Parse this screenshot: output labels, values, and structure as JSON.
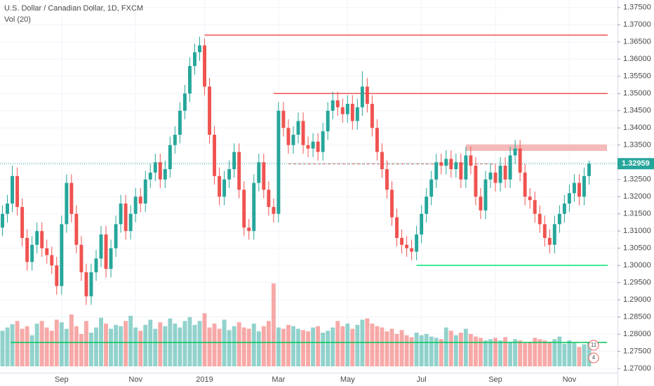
{
  "chart_data": {
    "type": "candlestick",
    "title": "U.S. Dollar / Canadian Dollar, 1D, FXCM",
    "volume_title": "Vol (20)",
    "up_color": "#26a69a",
    "down_color": "#ef5350",
    "grid": true,
    "ylim": [
      1.2686,
      1.3772
    ],
    "yticks": [
      {
        "value": 1.27,
        "label": "1.27000"
      },
      {
        "value": 1.275,
        "label": "1.27500"
      },
      {
        "value": 1.28,
        "label": "1.28000"
      },
      {
        "value": 1.285,
        "label": "1.28500"
      },
      {
        "value": 1.29,
        "label": "1.29000"
      },
      {
        "value": 1.295,
        "label": "1.29500"
      },
      {
        "value": 1.3,
        "label": "1.30000"
      },
      {
        "value": 1.305,
        "label": "1.30500"
      },
      {
        "value": 1.31,
        "label": "1.31000"
      },
      {
        "value": 1.315,
        "label": "1.31500"
      },
      {
        "value": 1.32,
        "label": "1.32000"
      },
      {
        "value": 1.325,
        "label": "1.32500"
      },
      {
        "value": 1.33,
        "label": "1.33000"
      },
      {
        "value": 1.335,
        "label": "1.33500"
      },
      {
        "value": 1.34,
        "label": "1.34000"
      },
      {
        "value": 1.345,
        "label": "1.34500"
      },
      {
        "value": 1.35,
        "label": "1.35000"
      },
      {
        "value": 1.355,
        "label": "1.35500"
      },
      {
        "value": 1.36,
        "label": "1.36000"
      },
      {
        "value": 1.365,
        "label": "1.36500"
      },
      {
        "value": 1.37,
        "label": "1.37000"
      },
      {
        "value": 1.375,
        "label": "1.37500"
      }
    ],
    "categories": [
      null,
      null,
      null,
      null,
      null,
      null,
      null,
      null,
      null,
      null,
      null,
      null,
      "Sep",
      null,
      null,
      null,
      null,
      null,
      null,
      null,
      null,
      null,
      null,
      null,
      null,
      null,
      null,
      "Nov",
      null,
      null,
      null,
      null,
      null,
      null,
      null,
      null,
      null,
      null,
      null,
      null,
      null,
      "2019",
      null,
      null,
      null,
      null,
      null,
      null,
      null,
      null,
      null,
      null,
      null,
      null,
      null,
      null,
      "Mar",
      null,
      null,
      null,
      null,
      null,
      null,
      null,
      null,
      null,
      null,
      null,
      null,
      null,
      "May",
      null,
      null,
      null,
      null,
      null,
      null,
      null,
      null,
      null,
      null,
      null,
      null,
      null,
      null,
      "Jul",
      null,
      null,
      null,
      null,
      null,
      null,
      null,
      null,
      null,
      null,
      null,
      null,
      null,
      null,
      "Sep",
      null,
      null,
      null,
      null,
      null,
      null,
      null,
      null,
      null,
      null,
      null,
      null,
      null,
      null,
      "Nov",
      null,
      null,
      null,
      null
    ],
    "candles": [
      [
        1.311,
        1.3175,
        1.3085,
        1.315
      ],
      [
        1.315,
        1.3205,
        1.3125,
        1.318
      ],
      [
        1.318,
        1.329,
        1.3155,
        1.326
      ],
      [
        1.326,
        1.3285,
        1.3145,
        1.317
      ],
      [
        1.317,
        1.3195,
        1.3055,
        1.308
      ],
      [
        1.308,
        1.3105,
        1.2985,
        1.301
      ],
      [
        1.301,
        1.3085,
        1.2985,
        1.306
      ],
      [
        1.306,
        1.3125,
        1.3035,
        1.31
      ],
      [
        1.31,
        1.3125,
        1.3025,
        1.305
      ],
      [
        1.305,
        1.3075,
        1.3005,
        1.303
      ],
      [
        1.303,
        1.3055,
        1.2975,
        1.3
      ],
      [
        1.3,
        1.3025,
        1.2915,
        1.294
      ],
      [
        1.294,
        1.3145,
        1.2915,
        1.312
      ],
      [
        1.312,
        1.3265,
        1.3095,
        1.324
      ],
      [
        1.324,
        1.3265,
        1.3125,
        1.315
      ],
      [
        1.315,
        1.3175,
        1.3035,
        1.306
      ],
      [
        1.306,
        1.3085,
        1.2955,
        1.298
      ],
      [
        1.298,
        1.3005,
        1.2885,
        1.291
      ],
      [
        1.291,
        1.3005,
        1.2885,
        1.298
      ],
      [
        1.298,
        1.3045,
        1.2955,
        1.302
      ],
      [
        1.302,
        1.3115,
        1.2995,
        1.309
      ],
      [
        1.309,
        1.3115,
        1.2965,
        1.299
      ],
      [
        1.299,
        1.3075,
        1.2965,
        1.305
      ],
      [
        1.305,
        1.3145,
        1.3025,
        1.312
      ],
      [
        1.312,
        1.3205,
        1.3095,
        1.318
      ],
      [
        1.318,
        1.3205,
        1.3075,
        1.31
      ],
      [
        1.31,
        1.3175,
        1.3075,
        1.315
      ],
      [
        1.315,
        1.3225,
        1.3125,
        1.32
      ],
      [
        1.32,
        1.3225,
        1.3155,
        1.318
      ],
      [
        1.318,
        1.3275,
        1.3155,
        1.325
      ],
      [
        1.325,
        1.3295,
        1.3225,
        1.327
      ],
      [
        1.327,
        1.3325,
        1.3245,
        1.33
      ],
      [
        1.33,
        1.3325,
        1.3225,
        1.325
      ],
      [
        1.325,
        1.3305,
        1.3225,
        1.328
      ],
      [
        1.328,
        1.3375,
        1.3255,
        1.335
      ],
      [
        1.335,
        1.3405,
        1.3325,
        1.338
      ],
      [
        1.338,
        1.3475,
        1.3355,
        1.345
      ],
      [
        1.345,
        1.3525,
        1.3425,
        1.35
      ],
      [
        1.35,
        1.3605,
        1.3475,
        1.358
      ],
      [
        1.358,
        1.3645,
        1.3555,
        1.362
      ],
      [
        1.362,
        1.3665,
        1.3595,
        1.364
      ],
      [
        1.364,
        1.366,
        1.3495,
        1.352
      ],
      [
        1.352,
        1.3545,
        1.3355,
        1.338
      ],
      [
        1.338,
        1.3405,
        1.3235,
        1.326
      ],
      [
        1.326,
        1.3285,
        1.3175,
        1.32
      ],
      [
        1.32,
        1.3275,
        1.3175,
        1.325
      ],
      [
        1.325,
        1.3305,
        1.3225,
        1.328
      ],
      [
        1.328,
        1.3355,
        1.3255,
        1.333
      ],
      [
        1.333,
        1.3355,
        1.3195,
        1.322
      ],
      [
        1.322,
        1.3245,
        1.3085,
        1.311
      ],
      [
        1.311,
        1.3135,
        1.3075,
        1.31
      ],
      [
        1.31,
        1.3265,
        1.3075,
        1.324
      ],
      [
        1.324,
        1.3325,
        1.3215,
        1.33
      ],
      [
        1.33,
        1.3325,
        1.3195,
        1.322
      ],
      [
        1.322,
        1.3245,
        1.3145,
        1.317
      ],
      [
        1.317,
        1.3195,
        1.3125,
        1.315
      ],
      [
        1.315,
        1.3475,
        1.3125,
        1.345
      ],
      [
        1.345,
        1.3475,
        1.3375,
        1.34
      ],
      [
        1.34,
        1.3425,
        1.3325,
        1.335
      ],
      [
        1.335,
        1.3405,
        1.3325,
        1.338
      ],
      [
        1.338,
        1.3445,
        1.3355,
        1.342
      ],
      [
        1.342,
        1.3445,
        1.3325,
        1.335
      ],
      [
        1.335,
        1.3375,
        1.3315,
        1.334
      ],
      [
        1.334,
        1.3385,
        1.3315,
        1.336
      ],
      [
        1.336,
        1.3385,
        1.3305,
        1.333
      ],
      [
        1.333,
        1.3415,
        1.3305,
        1.339
      ],
      [
        1.339,
        1.3475,
        1.3365,
        1.345
      ],
      [
        1.345,
        1.3505,
        1.3425,
        1.348
      ],
      [
        1.348,
        1.3505,
        1.3435,
        1.346
      ],
      [
        1.346,
        1.3485,
        1.3415,
        1.344
      ],
      [
        1.344,
        1.3495,
        1.3415,
        1.347
      ],
      [
        1.347,
        1.3495,
        1.3395,
        1.342
      ],
      [
        1.342,
        1.3485,
        1.3395,
        1.346
      ],
      [
        1.346,
        1.3565,
        1.3435,
        1.352
      ],
      [
        1.352,
        1.3545,
        1.3445,
        1.347
      ],
      [
        1.347,
        1.3495,
        1.3375,
        1.34
      ],
      [
        1.34,
        1.3425,
        1.3305,
        1.333
      ],
      [
        1.333,
        1.3355,
        1.3255,
        1.328
      ],
      [
        1.328,
        1.3305,
        1.3195,
        1.322
      ],
      [
        1.322,
        1.3245,
        1.3115,
        1.314
      ],
      [
        1.314,
        1.3165,
        1.3055,
        1.308
      ],
      [
        1.308,
        1.3105,
        1.3035,
        1.306
      ],
      [
        1.306,
        1.3085,
        1.3025,
        1.305
      ],
      [
        1.305,
        1.3075,
        1.3015,
        1.304
      ],
      [
        1.304,
        1.3115,
        1.3015,
        1.309
      ],
      [
        1.309,
        1.3175,
        1.3065,
        1.315
      ],
      [
        1.315,
        1.3225,
        1.3125,
        1.32
      ],
      [
        1.32,
        1.3275,
        1.3175,
        1.325
      ],
      [
        1.325,
        1.3325,
        1.3225,
        1.33
      ],
      [
        1.33,
        1.3325,
        1.3265,
        1.329
      ],
      [
        1.329,
        1.3335,
        1.3265,
        1.331
      ],
      [
        1.331,
        1.3335,
        1.3255,
        1.328
      ],
      [
        1.328,
        1.3325,
        1.3255,
        1.33
      ],
      [
        1.33,
        1.3325,
        1.3225,
        1.325
      ],
      [
        1.325,
        1.3345,
        1.3225,
        1.332
      ],
      [
        1.332,
        1.3345,
        1.3265,
        1.329
      ],
      [
        1.329,
        1.3315,
        1.3175,
        1.32
      ],
      [
        1.32,
        1.3225,
        1.3135,
        1.316
      ],
      [
        1.316,
        1.3275,
        1.3135,
        1.325
      ],
      [
        1.325,
        1.3295,
        1.3225,
        1.327
      ],
      [
        1.327,
        1.3295,
        1.3215,
        1.324
      ],
      [
        1.324,
        1.3315,
        1.3215,
        1.329
      ],
      [
        1.329,
        1.3315,
        1.3225,
        1.325
      ],
      [
        1.325,
        1.3345,
        1.3225,
        1.332
      ],
      [
        1.332,
        1.3365,
        1.3295,
        1.334
      ],
      [
        1.334,
        1.3365,
        1.3245,
        1.327
      ],
      [
        1.327,
        1.3295,
        1.3175,
        1.32
      ],
      [
        1.32,
        1.3225,
        1.3165,
        1.319
      ],
      [
        1.319,
        1.3215,
        1.3125,
        1.315
      ],
      [
        1.315,
        1.3175,
        1.3095,
        1.312
      ],
      [
        1.312,
        1.3145,
        1.3055,
        1.308
      ],
      [
        1.308,
        1.3105,
        1.3035,
        1.306
      ],
      [
        1.306,
        1.3145,
        1.3035,
        1.312
      ],
      [
        1.312,
        1.3175,
        1.3095,
        1.315
      ],
      [
        1.315,
        1.3205,
        1.3125,
        1.318
      ],
      [
        1.318,
        1.3235,
        1.3155,
        1.321
      ],
      [
        1.321,
        1.3265,
        1.3185,
        1.324
      ],
      [
        1.324,
        1.3265,
        1.3175,
        1.32
      ],
      [
        1.32,
        1.3285,
        1.3175,
        1.326
      ],
      [
        1.326,
        1.3305,
        1.3235,
        1.3296
      ]
    ],
    "volume_lim": [
      0,
      130
    ],
    "volume": [
      55,
      60,
      65,
      70,
      58,
      62,
      48,
      66,
      70,
      60,
      55,
      72,
      68,
      58,
      80,
      62,
      50,
      70,
      52,
      60,
      75,
      66,
      58,
      64,
      62,
      70,
      78,
      60,
      55,
      64,
      72,
      58,
      68,
      62,
      74,
      66,
      60,
      70,
      76,
      64,
      70,
      82,
      60,
      66,
      58,
      72,
      56,
      62,
      68,
      60,
      58,
      66,
      54,
      62,
      70,
      128,
      60,
      58,
      64,
      62,
      58,
      56,
      54,
      60,
      62,
      52,
      55,
      60,
      70,
      62,
      66,
      58,
      64,
      72,
      74,
      66,
      62,
      60,
      54,
      58,
      50,
      56,
      48,
      45,
      52,
      48,
      50,
      46,
      44,
      42,
      60,
      55,
      48,
      52,
      58,
      50,
      46,
      44,
      40,
      42,
      44,
      40,
      45,
      38,
      42,
      40,
      36,
      38,
      44,
      42,
      40,
      38,
      42,
      46,
      35,
      40,
      36,
      30,
      34,
      38
    ],
    "volume_ma": 37,
    "volume_ma_color": "#00c853",
    "levels": [
      {
        "price": 1.367,
        "color": "#ef5350",
        "start": 41
      },
      {
        "price": 1.35,
        "color": "#ef5350",
        "start": 55
      },
      {
        "price": 1.3,
        "color": "#00e676",
        "start": 84
      },
      {
        "price": 1.3295,
        "color": "#ef5350",
        "start": 58,
        "end": 100,
        "style": "dashed"
      }
    ],
    "zone": {
      "from": 1.3333,
      "to": 1.3352,
      "color": "#f4b9b9",
      "start": 94
    },
    "last_price": 1.32959,
    "last_price_color": "#26a69a",
    "event_badges": [
      "11",
      "4"
    ]
  }
}
